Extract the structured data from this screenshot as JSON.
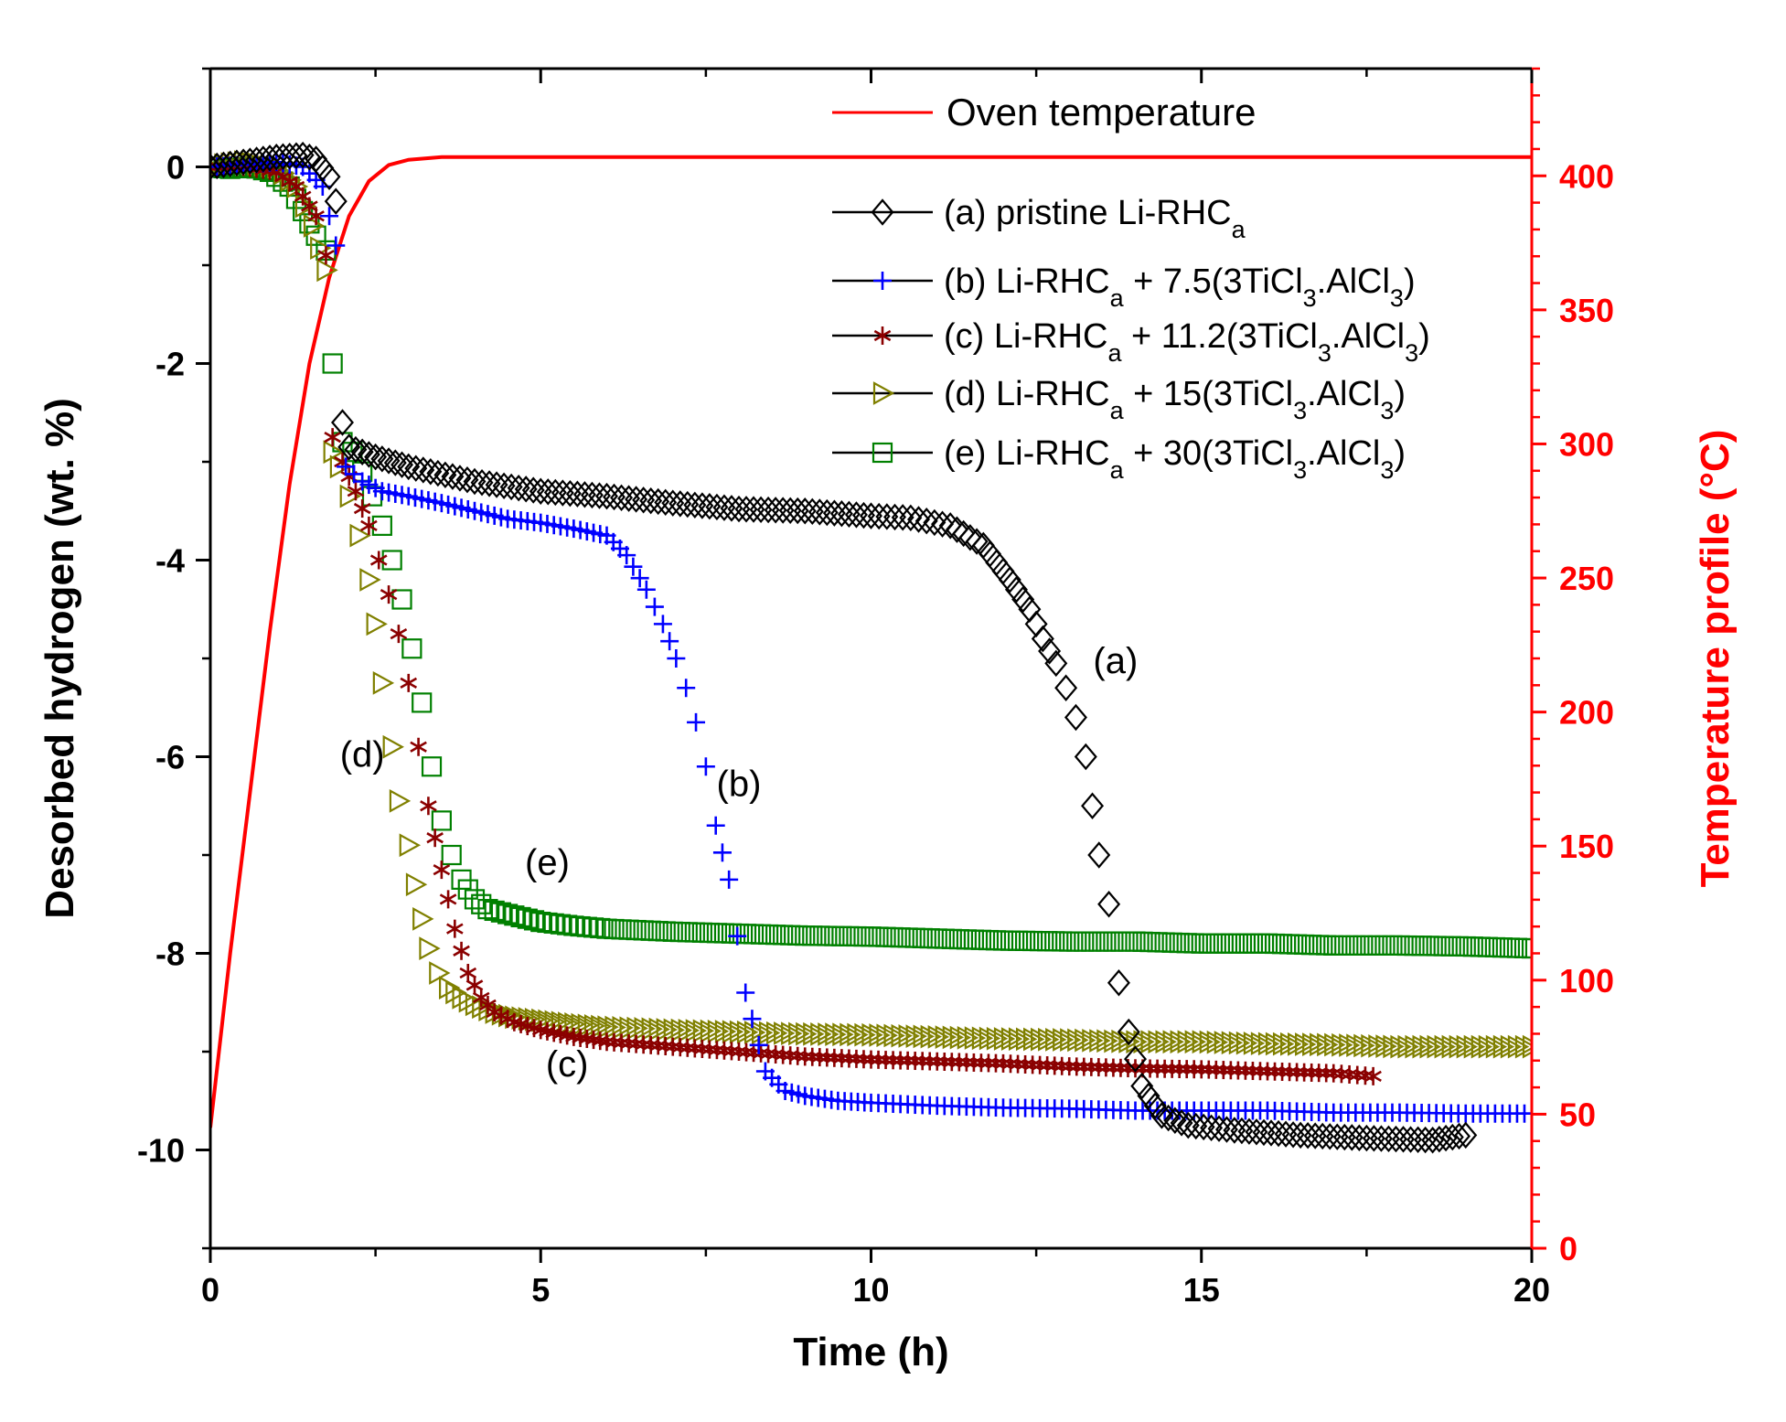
{
  "chart_data": {
    "type": "scatter",
    "title": "",
    "xlabel": "Time (h)",
    "ylabel": "Desorbed hydrogen (wt. %)",
    "y2label": "Temperature profile (°C)",
    "xlim": [
      0,
      20
    ],
    "ylim": [
      -11,
      1
    ],
    "y2lim": [
      0,
      440
    ],
    "x_ticks": [
      "0",
      "5",
      "10",
      "15",
      "20"
    ],
    "y_ticks": [
      "0",
      "-2",
      "-4",
      "-6",
      "-8",
      "-10"
    ],
    "y2_ticks": [
      "0",
      "50",
      "100",
      "150",
      "200",
      "250",
      "300",
      "350",
      "400"
    ],
    "legend": {
      "oven": "Oven temperature",
      "a": {
        "prefix": "(a) pristine Li-RHC",
        "sub": "a",
        "suffix": ""
      },
      "b": {
        "prefix": "(b) Li-RHC",
        "sub": "a",
        "suffix": " + 7.5(3TiCl",
        "sub2": "3",
        "suffix2": ".AlCl",
        "sub3": "3",
        "end": ")"
      },
      "c": {
        "prefix": "(c) Li-RHC",
        "sub": "a",
        "suffix": " + 11.2(3TiCl",
        "sub2": "3",
        "suffix2": ".AlCl",
        "sub3": "3",
        "end": ")"
      },
      "d": {
        "prefix": "(d) Li-RHC",
        "sub": "a",
        "suffix": " + 15(3TiCl",
        "sub2": "3",
        "suffix2": ".AlCl",
        "sub3": "3",
        "end": ")"
      },
      "e": {
        "prefix": "(e) Li-RHC",
        "sub": "a",
        "suffix": " + 30(3TiCl",
        "sub2": "3",
        "suffix2": ".AlCl",
        "sub3": "3",
        "end": ")"
      }
    },
    "curve_labels": {
      "a": {
        "text": "(a)",
        "x": 13.7,
        "y": -5.15
      },
      "b": {
        "text": "(b)",
        "x": 8.0,
        "y": -6.4
      },
      "c": {
        "text": "(c)",
        "x": 5.4,
        "y": -9.25
      },
      "d": {
        "text": "(d)",
        "x": 2.3,
        "y": -6.1
      },
      "e": {
        "text": "(e)",
        "x": 5.1,
        "y": -7.2
      }
    },
    "colors": {
      "oven": "#ff0000",
      "a": "#000000",
      "b": "#0000ff",
      "c": "#8b0000",
      "d": "#808000",
      "e": "#008000",
      "axis": "#000000",
      "axis_right": "#ff0000"
    },
    "series": [
      {
        "id": "oven",
        "name": "Oven temperature",
        "axis": "right",
        "marker": "line",
        "x": [
          0,
          0.3,
          0.6,
          0.9,
          1.2,
          1.5,
          1.8,
          2.1,
          2.4,
          2.7,
          3.0,
          3.5,
          20
        ],
        "y": [
          45,
          110,
          170,
          230,
          285,
          330,
          362,
          385,
          398,
          404,
          406,
          407,
          407
        ]
      },
      {
        "id": "a",
        "name": "(a) pristine Li-RHCa",
        "axis": "left",
        "marker": "diamond",
        "x": [
          0,
          0.5,
          1.0,
          1.4,
          1.6,
          1.8,
          1.9,
          2.0,
          2.1,
          2.5,
          3,
          4,
          5,
          6,
          7,
          8,
          9,
          10,
          10.6,
          11.2,
          11.7,
          12.1,
          12.4,
          12.6,
          12.8,
          12.95,
          13.1,
          13.25,
          13.35,
          13.45,
          13.6,
          13.75,
          13.9,
          14.1,
          14.4,
          14.8,
          15.5,
          16.5,
          17.5,
          18.5,
          19.0
        ],
        "y": [
          0,
          0.05,
          0.1,
          0.12,
          0.08,
          -0.1,
          -0.35,
          -2.6,
          -2.85,
          -2.95,
          -3.05,
          -3.2,
          -3.3,
          -3.35,
          -3.42,
          -3.48,
          -3.5,
          -3.55,
          -3.57,
          -3.65,
          -3.85,
          -4.2,
          -4.5,
          -4.8,
          -5.05,
          -5.3,
          -5.6,
          -6.0,
          -6.5,
          -7.0,
          -7.5,
          -8.3,
          -8.8,
          -9.35,
          -9.65,
          -9.75,
          -9.8,
          -9.85,
          -9.88,
          -9.9,
          -9.85
        ]
      },
      {
        "id": "b",
        "name": "(b) Li-RHCa + 7.5(3TiCl3.AlCl3)",
        "axis": "left",
        "marker": "plus",
        "x": [
          0,
          0.5,
          1.0,
          1.4,
          1.7,
          1.9,
          2.05,
          2.3,
          2.6,
          3,
          3.5,
          4,
          4.5,
          5,
          5.5,
          6,
          6.3,
          6.6,
          6.85,
          7.05,
          7.2,
          7.35,
          7.5,
          7.65,
          7.85,
          8.1,
          8.4,
          8.7,
          9.0,
          9.5,
          10,
          11,
          12,
          13,
          14,
          15,
          16,
          17,
          18,
          19,
          20
        ],
        "y": [
          0,
          0.02,
          0.05,
          0.0,
          -0.2,
          -0.8,
          -3.05,
          -3.2,
          -3.3,
          -3.35,
          -3.42,
          -3.5,
          -3.58,
          -3.62,
          -3.68,
          -3.75,
          -3.95,
          -4.3,
          -4.65,
          -5.0,
          -5.3,
          -5.65,
          -6.1,
          -6.7,
          -7.25,
          -8.4,
          -9.2,
          -9.4,
          -9.45,
          -9.5,
          -9.52,
          -9.55,
          -9.57,
          -9.58,
          -9.6,
          -9.6,
          -9.6,
          -9.62,
          -9.62,
          -9.63,
          -9.63
        ]
      },
      {
        "id": "c",
        "name": "(c) Li-RHCa + 11.2(3TiCl3.AlCl3)",
        "axis": "left",
        "marker": "asterisk",
        "x": [
          0,
          0.5,
          1.0,
          1.3,
          1.6,
          1.75,
          1.85,
          2.0,
          2.2,
          2.4,
          2.55,
          2.7,
          2.85,
          3.0,
          3.15,
          3.3,
          3.5,
          3.7,
          3.9,
          4.1,
          4.3,
          4.6,
          5.0,
          5.5,
          6,
          7,
          8,
          9,
          10,
          11,
          12,
          13,
          14,
          15,
          16,
          17,
          17.6
        ],
        "y": [
          0,
          0.0,
          -0.05,
          -0.2,
          -0.5,
          -0.9,
          -2.75,
          -3.0,
          -3.3,
          -3.65,
          -4.0,
          -4.35,
          -4.75,
          -5.25,
          -5.9,
          -6.5,
          -7.15,
          -7.75,
          -8.2,
          -8.45,
          -8.6,
          -8.7,
          -8.78,
          -8.85,
          -8.9,
          -8.95,
          -9.0,
          -9.05,
          -9.08,
          -9.1,
          -9.12,
          -9.15,
          -9.17,
          -9.18,
          -9.2,
          -9.22,
          -9.25
        ]
      },
      {
        "id": "d",
        "name": "(d) Li-RHCa + 15(3TiCl3.AlCl3)",
        "axis": "left",
        "marker": "triangle",
        "x": [
          0,
          0.5,
          1.0,
          1.3,
          1.55,
          1.75,
          1.85,
          1.95,
          2.1,
          2.25,
          2.4,
          2.5,
          2.6,
          2.75,
          2.85,
          3.0,
          3.1,
          3.2,
          3.3,
          3.45,
          3.6,
          3.8,
          4.0,
          4.3,
          4.6,
          5.0,
          5.5,
          6,
          7,
          8,
          9,
          10,
          11,
          12,
          13,
          14,
          15,
          16,
          17,
          18,
          19,
          20
        ],
        "y": [
          0,
          0.05,
          0.0,
          -0.2,
          -0.6,
          -1.05,
          -2.9,
          -3.05,
          -3.35,
          -3.75,
          -4.2,
          -4.65,
          -5.25,
          -5.9,
          -6.45,
          -6.9,
          -7.3,
          -7.65,
          -7.95,
          -8.2,
          -8.35,
          -8.45,
          -8.52,
          -8.6,
          -8.65,
          -8.68,
          -8.72,
          -8.75,
          -8.78,
          -8.8,
          -8.82,
          -8.83,
          -8.85,
          -8.87,
          -8.88,
          -8.9,
          -8.9,
          -8.92,
          -8.93,
          -8.95,
          -8.95,
          -8.95
        ]
      },
      {
        "id": "e",
        "name": "(e) Li-RHCa + 30(3TiCl3.AlCl3)",
        "axis": "left",
        "marker": "square",
        "x": [
          0,
          0.3,
          0.6,
          0.9,
          1.2,
          1.4,
          1.6,
          1.75,
          1.85,
          2.0,
          2.15,
          2.3,
          2.45,
          2.6,
          2.75,
          2.9,
          3.05,
          3.2,
          3.35,
          3.5,
          3.65,
          3.8,
          4.0,
          4.2,
          4.5,
          5.0,
          5.5,
          6,
          7,
          8,
          9,
          10,
          11,
          12,
          13,
          14,
          15,
          16,
          17,
          18,
          19,
          20
        ],
        "y": [
          0,
          -0.02,
          0.0,
          -0.05,
          -0.2,
          -0.45,
          -0.7,
          -0.85,
          -2.0,
          -2.8,
          -2.9,
          -3.1,
          -3.35,
          -3.65,
          -4.0,
          -4.4,
          -4.9,
          -5.45,
          -6.1,
          -6.65,
          -7.0,
          -7.25,
          -7.45,
          -7.55,
          -7.6,
          -7.68,
          -7.72,
          -7.75,
          -7.78,
          -7.8,
          -7.82,
          -7.83,
          -7.85,
          -7.87,
          -7.88,
          -7.88,
          -7.9,
          -7.9,
          -7.92,
          -7.92,
          -7.93,
          -7.95
        ]
      }
    ]
  }
}
